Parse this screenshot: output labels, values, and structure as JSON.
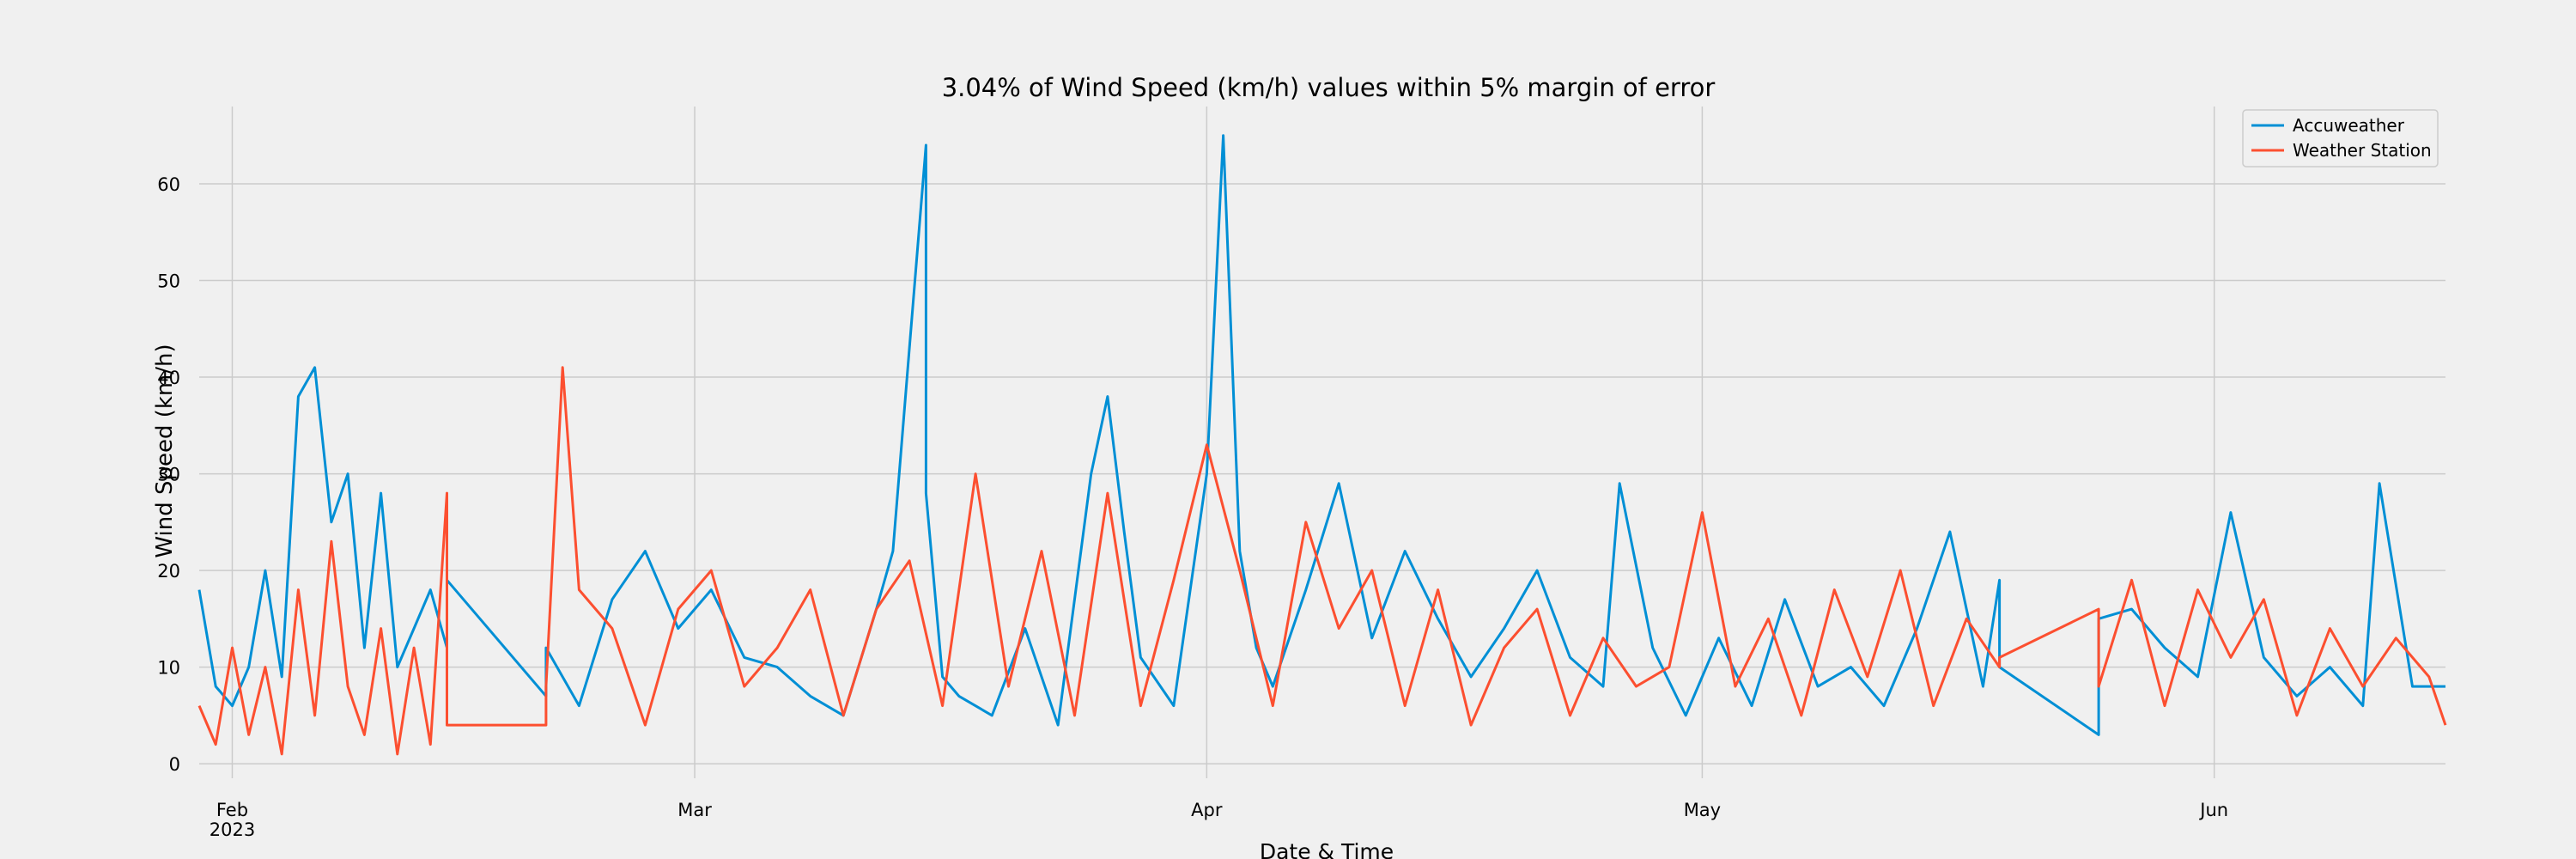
{
  "chart_data": {
    "type": "line",
    "title": "3.04% of Wind Speed (km/h) values within 5% margin of error",
    "xlabel": "Date & Time",
    "ylabel": "Wind Speed (km/h)",
    "x_range": [
      "2023-01-30",
      "2023-06-15"
    ],
    "ylim": [
      -1.5,
      68
    ],
    "x_ticks": [
      {
        "date": "2023-02-01",
        "label": "Feb",
        "sublabel": "2023"
      },
      {
        "date": "2023-03-01",
        "label": "Mar",
        "sublabel": ""
      },
      {
        "date": "2023-04-01",
        "label": "Apr",
        "sublabel": ""
      },
      {
        "date": "2023-05-01",
        "label": "May",
        "sublabel": ""
      },
      {
        "date": "2023-06-01",
        "label": "Jun",
        "sublabel": ""
      }
    ],
    "y_ticks": [
      0,
      10,
      20,
      30,
      40,
      50,
      60
    ],
    "grid": true,
    "legend_position": "top-right",
    "series": [
      {
        "name": "Accuweather",
        "color": "#008fd5",
        "x": [
          "2023-01-30",
          "2023-01-31",
          "2023-02-01",
          "2023-02-02",
          "2023-02-03",
          "2023-02-04",
          "2023-02-05",
          "2023-02-06",
          "2023-02-07",
          "2023-02-08",
          "2023-02-09",
          "2023-02-10",
          "2023-02-11",
          "2023-02-12",
          "2023-02-13",
          "2023-02-14",
          "2023-02-14",
          "2023-02-20",
          "2023-02-20",
          "2023-02-22",
          "2023-02-24",
          "2023-02-26",
          "2023-02-28",
          "2023-03-02",
          "2023-03-04",
          "2023-03-06",
          "2023-03-08",
          "2023-03-10",
          "2023-03-12",
          "2023-03-13",
          "2023-03-14",
          "2023-03-15",
          "2023-03-15",
          "2023-03-16",
          "2023-03-17",
          "2023-03-19",
          "2023-03-21",
          "2023-03-23",
          "2023-03-25",
          "2023-03-26",
          "2023-03-27",
          "2023-03-28",
          "2023-03-30",
          "2023-04-01",
          "2023-04-02",
          "2023-04-03",
          "2023-04-04",
          "2023-04-05",
          "2023-04-07",
          "2023-04-09",
          "2023-04-11",
          "2023-04-13",
          "2023-04-15",
          "2023-04-17",
          "2023-04-19",
          "2023-04-21",
          "2023-04-23",
          "2023-04-25",
          "2023-04-26",
          "2023-04-28",
          "2023-04-30",
          "2023-05-02",
          "2023-05-04",
          "2023-05-06",
          "2023-05-08",
          "2023-05-10",
          "2023-05-12",
          "2023-05-14",
          "2023-05-16",
          "2023-05-18",
          "2023-05-19",
          "2023-05-19",
          "2023-05-25",
          "2023-05-25",
          "2023-05-27",
          "2023-05-29",
          "2023-05-31",
          "2023-06-02",
          "2023-06-04",
          "2023-06-06",
          "2023-06-08",
          "2023-06-10",
          "2023-06-11",
          "2023-06-13",
          "2023-06-15"
        ],
        "y": [
          18,
          8,
          6,
          10,
          20,
          9,
          38,
          41,
          25,
          30,
          12,
          28,
          10,
          14,
          18,
          12,
          19,
          7,
          12,
          6,
          17,
          22,
          14,
          18,
          11,
          10,
          7,
          5,
          16,
          22,
          43,
          64,
          28,
          9,
          7,
          5,
          14,
          4,
          30,
          38,
          24,
          11,
          6,
          30,
          65,
          22,
          12,
          8,
          18,
          29,
          13,
          22,
          15,
          9,
          14,
          20,
          11,
          8,
          29,
          12,
          5,
          13,
          6,
          17,
          8,
          10,
          6,
          14,
          24,
          8,
          19,
          10,
          3,
          15,
          16,
          12,
          9,
          26,
          11,
          7,
          10,
          6,
          29,
          8,
          8
        ]
      },
      {
        "name": "Weather Station",
        "color": "#fc4f30",
        "x": [
          "2023-01-30",
          "2023-01-31",
          "2023-02-01",
          "2023-02-02",
          "2023-02-03",
          "2023-02-04",
          "2023-02-05",
          "2023-02-06",
          "2023-02-07",
          "2023-02-08",
          "2023-02-09",
          "2023-02-10",
          "2023-02-11",
          "2023-02-12",
          "2023-02-13",
          "2023-02-14",
          "2023-02-14",
          "2023-02-14",
          "2023-02-20",
          "2023-02-20",
          "2023-02-21",
          "2023-02-22",
          "2023-02-24",
          "2023-02-26",
          "2023-02-28",
          "2023-03-02",
          "2023-03-04",
          "2023-03-06",
          "2023-03-08",
          "2023-03-10",
          "2023-03-12",
          "2023-03-14",
          "2023-03-16",
          "2023-03-18",
          "2023-03-20",
          "2023-03-22",
          "2023-03-24",
          "2023-03-26",
          "2023-03-28",
          "2023-03-30",
          "2023-04-01",
          "2023-04-03",
          "2023-04-05",
          "2023-04-07",
          "2023-04-09",
          "2023-04-11",
          "2023-04-13",
          "2023-04-15",
          "2023-04-17",
          "2023-04-19",
          "2023-04-21",
          "2023-04-23",
          "2023-04-25",
          "2023-04-27",
          "2023-04-29",
          "2023-05-01",
          "2023-05-03",
          "2023-05-05",
          "2023-05-07",
          "2023-05-09",
          "2023-05-11",
          "2023-05-13",
          "2023-05-15",
          "2023-05-17",
          "2023-05-19",
          "2023-05-19",
          "2023-05-25",
          "2023-05-25",
          "2023-05-27",
          "2023-05-29",
          "2023-05-31",
          "2023-06-02",
          "2023-06-04",
          "2023-06-06",
          "2023-06-08",
          "2023-06-10",
          "2023-06-12",
          "2023-06-14",
          "2023-06-15"
        ],
        "y": [
          6,
          2,
          12,
          3,
          10,
          1,
          18,
          5,
          23,
          8,
          3,
          14,
          1,
          12,
          2,
          28,
          6,
          4,
          4,
          8,
          41,
          18,
          14,
          4,
          16,
          20,
          8,
          12,
          18,
          5,
          16,
          21,
          6,
          30,
          8,
          22,
          5,
          28,
          6,
          19,
          33,
          20,
          6,
          25,
          14,
          20,
          6,
          18,
          4,
          12,
          16,
          5,
          13,
          8,
          10,
          26,
          8,
          15,
          5,
          18,
          9,
          20,
          6,
          15,
          10,
          11,
          16,
          8,
          19,
          6,
          18,
          11,
          17,
          5,
          14,
          8,
          13,
          9,
          4
        ]
      }
    ]
  }
}
